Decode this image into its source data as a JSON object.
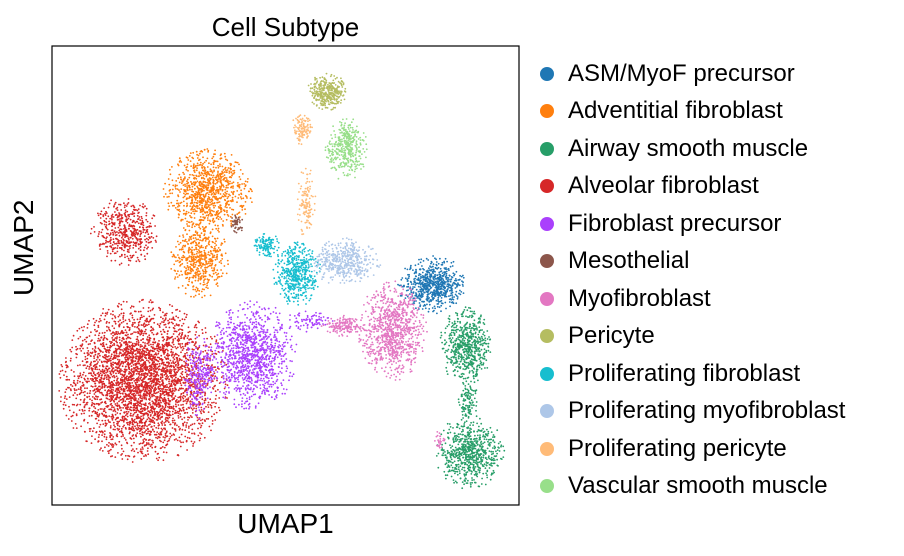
{
  "chart_data": {
    "type": "scatter",
    "title": "Cell Subtype",
    "xlabel": "UMAP1",
    "ylabel": "UMAP2",
    "xlim": [
      0,
      100
    ],
    "ylim": [
      0,
      100
    ],
    "grid": false,
    "ticks": false,
    "legend_placement": "right",
    "series": [
      {
        "name": "ASM/MyoF precursor",
        "color": "#1f77b4",
        "clusters": [
          {
            "cx": 81.5,
            "cy": 48.0,
            "rx": 6.5,
            "ry": 5.5,
            "n": 700
          }
        ]
      },
      {
        "name": "Adventitial fibroblast",
        "color": "#ff7f0e",
        "clusters": [
          {
            "cx": 33.5,
            "cy": 68.5,
            "rx": 8.5,
            "ry": 8.0,
            "n": 900
          },
          {
            "cx": 31.5,
            "cy": 53.5,
            "rx": 5.5,
            "ry": 7.5,
            "n": 500
          }
        ]
      },
      {
        "name": "Airway smooth muscle",
        "color": "#279e68",
        "clusters": [
          {
            "cx": 88.5,
            "cy": 34.5,
            "rx": 5.0,
            "ry": 7.5,
            "n": 600
          },
          {
            "cx": 89.5,
            "cy": 11.5,
            "rx": 6.5,
            "ry": 7.0,
            "n": 700
          },
          {
            "cx": 89.0,
            "cy": 23.0,
            "rx": 1.8,
            "ry": 4.5,
            "n": 100
          }
        ]
      },
      {
        "name": "Alveolar fibroblast",
        "color": "#d62728",
        "clusters": [
          {
            "cx": 19.5,
            "cy": 27.0,
            "rx": 16.0,
            "ry": 15.5,
            "n": 3600
          },
          {
            "cx": 15.5,
            "cy": 59.5,
            "rx": 6.5,
            "ry": 6.5,
            "n": 500
          }
        ]
      },
      {
        "name": "Fibroblast precursor",
        "color": "#aa40fc",
        "clusters": [
          {
            "cx": 43.0,
            "cy": 32.5,
            "rx": 8.5,
            "ry": 10.5,
            "n": 1100
          },
          {
            "cx": 31.5,
            "cy": 28.0,
            "rx": 3.0,
            "ry": 8.0,
            "n": 250
          },
          {
            "cx": 55.0,
            "cy": 40.0,
            "rx": 5.0,
            "ry": 2.0,
            "n": 80
          }
        ]
      },
      {
        "name": "Mesothelial",
        "color": "#8c564b",
        "clusters": [
          {
            "cx": 39.5,
            "cy": 61.0,
            "rx": 1.3,
            "ry": 2.0,
            "n": 50
          }
        ]
      },
      {
        "name": "Myofibroblast",
        "color": "#e377c2",
        "clusters": [
          {
            "cx": 73.0,
            "cy": 38.0,
            "rx": 6.5,
            "ry": 9.5,
            "n": 900
          },
          {
            "cx": 62.5,
            "cy": 39.0,
            "rx": 4.5,
            "ry": 2.0,
            "n": 150
          },
          {
            "cx": 83.0,
            "cy": 14.0,
            "rx": 1.0,
            "ry": 2.0,
            "n": 25
          }
        ]
      },
      {
        "name": "Pericyte",
        "color": "#b5bd61",
        "clusters": [
          {
            "cx": 59.0,
            "cy": 90.0,
            "rx": 3.8,
            "ry": 3.5,
            "n": 350
          }
        ]
      },
      {
        "name": "Proliferating fibroblast",
        "color": "#17becf",
        "clusters": [
          {
            "cx": 52.5,
            "cy": 50.5,
            "rx": 4.5,
            "ry": 6.5,
            "n": 500
          },
          {
            "cx": 46.0,
            "cy": 56.5,
            "rx": 2.5,
            "ry": 2.5,
            "n": 120
          }
        ]
      },
      {
        "name": "Proliferating myofibroblast",
        "color": "#aec7e8",
        "clusters": [
          {
            "cx": 62.5,
            "cy": 53.0,
            "rx": 7.0,
            "ry": 4.5,
            "n": 450
          }
        ]
      },
      {
        "name": "Proliferating pericyte",
        "color": "#ffbb78",
        "clusters": [
          {
            "cx": 53.5,
            "cy": 82.0,
            "rx": 2.0,
            "ry": 3.0,
            "n": 120
          },
          {
            "cx": 54.5,
            "cy": 66.0,
            "rx": 1.8,
            "ry": 7.0,
            "n": 120
          }
        ]
      },
      {
        "name": "Vascular smooth muscle",
        "color": "#98df8a",
        "clusters": [
          {
            "cx": 63.0,
            "cy": 77.5,
            "rx": 4.0,
            "ry": 6.0,
            "n": 400
          }
        ]
      }
    ]
  }
}
